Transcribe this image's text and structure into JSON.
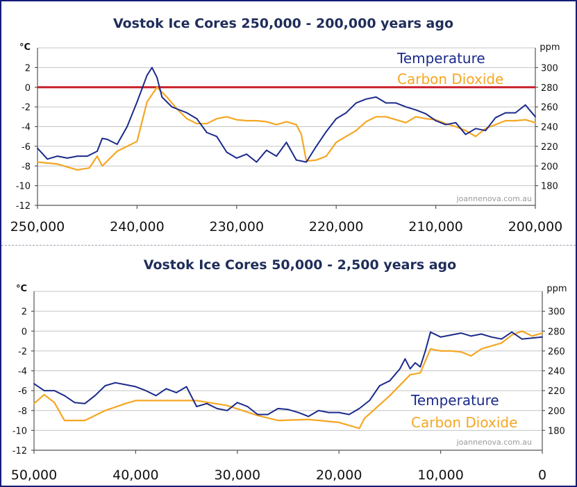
{
  "chart_data": [
    {
      "type": "line",
      "title": "Vostok Ice Cores   250,000 - 200,000 years ago",
      "y_unit_left": "°C",
      "y_unit_right": "ppm",
      "xlim": [
        250000,
        200000
      ],
      "ylim_left": [
        -12,
        4
      ],
      "ylim_right": [
        160,
        320
      ],
      "x_ticks": [
        250000,
        240000,
        230000,
        220000,
        210000,
        200000
      ],
      "x_tick_labels": [
        "250,000",
        "240,000",
        "230,000",
        "220,000",
        "210,000",
        "200,000"
      ],
      "y_ticks_left": [
        2,
        0,
        -2,
        -4,
        -6,
        -8,
        -10,
        -12
      ],
      "y_tick_labels_left": [
        "2",
        "0",
        "-2",
        "-4",
        "-6",
        "-8",
        "-10",
        "-12"
      ],
      "y_ticks_right": [
        300,
        280,
        260,
        240,
        220,
        200,
        180
      ],
      "y_tick_labels_right": [
        "300",
        "280",
        "260",
        "240",
        "220",
        "200",
        "180"
      ],
      "grid": true,
      "reference_line": {
        "y": 0,
        "color": "#c8202a"
      },
      "legend": {
        "position": "top-right",
        "entries": [
          "Temperature",
          "Carbon Dioxide"
        ]
      },
      "credit": "joannenova.com.au",
      "series": [
        {
          "name": "Temperature",
          "axis": "left",
          "color": "#1a2a8a",
          "x": [
            250000,
            249000,
            248000,
            247000,
            246000,
            245000,
            244000,
            243500,
            243000,
            242000,
            241000,
            240000,
            239000,
            238500,
            238000,
            237500,
            237000,
            236500,
            236000,
            235000,
            234000,
            233000,
            232000,
            231000,
            230000,
            229000,
            228000,
            227000,
            226000,
            225000,
            224000,
            223000,
            222000,
            221000,
            220000,
            219000,
            218000,
            217000,
            216000,
            215000,
            214000,
            213000,
            212000,
            211000,
            210000,
            209000,
            208000,
            207000,
            206000,
            205000,
            204000,
            203000,
            202000,
            201000,
            200500,
            200000
          ],
          "values": [
            -6.2,
            -7.3,
            -7.0,
            -7.2,
            -7.0,
            -7.0,
            -6.5,
            -5.2,
            -5.3,
            -5.8,
            -4.0,
            -1.5,
            1.2,
            2.0,
            1.0,
            -1.0,
            -1.5,
            -2.0,
            -2.2,
            -2.6,
            -3.2,
            -4.6,
            -5.0,
            -6.6,
            -7.2,
            -6.8,
            -7.6,
            -6.4,
            -7.0,
            -5.6,
            -7.4,
            -7.6,
            -6.0,
            -4.5,
            -3.2,
            -2.6,
            -1.6,
            -1.2,
            -1.0,
            -1.6,
            -1.6,
            -2.0,
            -2.3,
            -2.7,
            -3.4,
            -3.8,
            -3.6,
            -4.8,
            -4.2,
            -4.4,
            -3.1,
            -2.6,
            -2.6,
            -1.8,
            -2.4,
            -3.0
          ]
        },
        {
          "name": "Carbon Dioxide",
          "axis": "right",
          "color": "#f5a623",
          "x": [
            250000,
            248000,
            246000,
            244800,
            244000,
            243500,
            242000,
            241000,
            240000,
            239000,
            238000,
            237000,
            236000,
            235000,
            234000,
            233000,
            232000,
            231000,
            230000,
            229000,
            228000,
            227000,
            226000,
            225000,
            224000,
            223500,
            223000,
            222000,
            221000,
            220000,
            219000,
            218000,
            217000,
            216000,
            215000,
            214000,
            213000,
            212000,
            211000,
            210000,
            209000,
            208000,
            207000,
            206000,
            205000,
            204000,
            203000,
            202000,
            201000,
            200000
          ],
          "values": [
            204,
            202,
            196,
            198,
            210,
            200,
            215,
            220,
            225,
            265,
            280,
            270,
            258,
            248,
            243,
            243,
            248,
            250,
            247,
            246,
            246,
            245,
            242,
            245,
            242,
            232,
            205,
            206,
            210,
            224,
            230,
            236,
            245,
            250,
            250,
            247,
            244,
            250,
            248,
            247,
            243,
            240,
            236,
            230,
            238,
            242,
            246,
            246,
            247,
            244
          ]
        }
      ]
    },
    {
      "type": "line",
      "title": "Vostok Ice Cores  50,000 - 2,500 years ago",
      "y_unit_left": "°C",
      "y_unit_right": "ppm",
      "xlim": [
        50000,
        0
      ],
      "ylim_left": [
        -12,
        4
      ],
      "ylim_right": [
        160,
        320
      ],
      "x_ticks": [
        50000,
        40000,
        30000,
        20000,
        10000,
        0
      ],
      "x_tick_labels": [
        "50,000",
        "40,000",
        "30,000",
        "20,000",
        "10,000",
        "0"
      ],
      "y_ticks_left": [
        2,
        0,
        -2,
        -4,
        -6,
        -8,
        -10,
        -12
      ],
      "y_tick_labels_left": [
        "2",
        "0",
        "-2",
        "-4",
        "-6",
        "-8",
        "-10",
        "-12"
      ],
      "y_ticks_right": [
        300,
        280,
        260,
        240,
        220,
        200,
        180
      ],
      "y_tick_labels_right": [
        "300",
        "280",
        "260",
        "240",
        "220",
        "200",
        "180"
      ],
      "grid": true,
      "legend": {
        "position": "bottom-right",
        "entries": [
          "Temperature",
          "Carbon Dioxide"
        ]
      },
      "credit": "joannenova.com.au",
      "series": [
        {
          "name": "Temperature",
          "axis": "left",
          "color": "#1a2a8a",
          "x": [
            50000,
            49000,
            48000,
            47000,
            46000,
            45000,
            44000,
            43000,
            42000,
            41000,
            40000,
            39000,
            38000,
            37000,
            36000,
            35000,
            34000,
            33000,
            32000,
            31000,
            30000,
            29000,
            28000,
            27000,
            26000,
            25000,
            24000,
            23000,
            22000,
            21000,
            20000,
            19000,
            18000,
            17000,
            16000,
            15000,
            14000,
            13500,
            13000,
            12500,
            12000,
            11500,
            11000,
            10000,
            9000,
            8000,
            7000,
            6000,
            5000,
            4000,
            3000,
            2000,
            1000,
            0
          ],
          "values": [
            -5.3,
            -6.0,
            -6.0,
            -6.5,
            -7.2,
            -7.3,
            -6.5,
            -5.5,
            -5.2,
            -5.4,
            -5.6,
            -6.0,
            -6.5,
            -5.8,
            -6.2,
            -5.6,
            -7.6,
            -7.3,
            -7.8,
            -8.0,
            -7.2,
            -7.6,
            -8.4,
            -8.4,
            -7.8,
            -7.9,
            -8.2,
            -8.6,
            -8.0,
            -8.2,
            -8.2,
            -8.4,
            -7.8,
            -7.0,
            -5.5,
            -5.0,
            -3.8,
            -2.8,
            -3.8,
            -3.2,
            -3.6,
            -2.0,
            -0.1,
            -0.6,
            -0.4,
            -0.2,
            -0.5,
            -0.3,
            -0.6,
            -0.8,
            -0.1,
            -0.8,
            -0.7,
            -0.6
          ]
        },
        {
          "name": "Carbon Dioxide",
          "axis": "right",
          "color": "#f5a623",
          "x": [
            50000,
            49000,
            48000,
            47000,
            45000,
            43000,
            41000,
            40000,
            39000,
            38000,
            34000,
            31000,
            28000,
            26000,
            23000,
            20000,
            18000,
            17500,
            15000,
            13000,
            12000,
            11000,
            10000,
            9000,
            8000,
            7000,
            6000,
            5000,
            4000,
            3000,
            2000,
            1000,
            0
          ],
          "values": [
            207,
            216,
            208,
            190,
            190,
            200,
            207,
            210,
            210,
            210,
            210,
            205,
            195,
            190,
            191,
            188,
            182,
            192,
            215,
            236,
            238,
            262,
            260,
            260,
            259,
            255,
            262,
            265,
            268,
            276,
            280,
            275,
            278
          ]
        }
      ]
    }
  ]
}
